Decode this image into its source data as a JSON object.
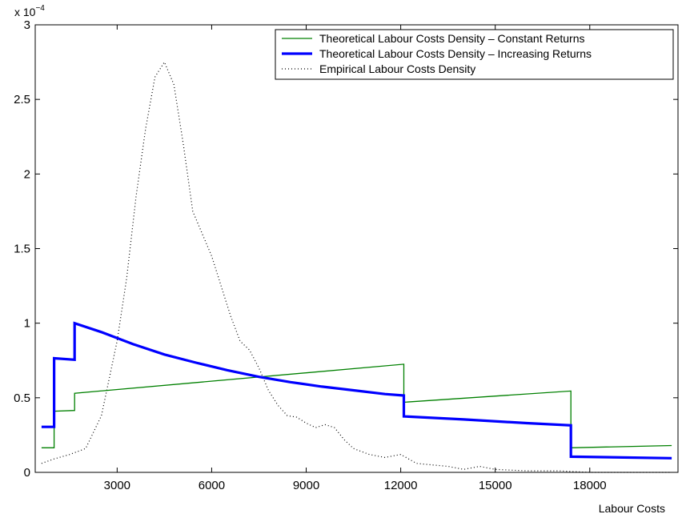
{
  "chart_data": {
    "type": "line",
    "title": "",
    "xlabel": "Labour Costs",
    "ylabel": "",
    "y_multiplier_label": "x 10",
    "y_multiplier_exponent": "−4",
    "xlim": [
      400,
      20800
    ],
    "ylim": [
      0,
      3
    ],
    "xticks": [
      3000,
      6000,
      9000,
      12000,
      15000,
      18000
    ],
    "xtick_labels": [
      "3000",
      "6000",
      "9000",
      "12000",
      "15000",
      "18000"
    ],
    "yticks": [
      0,
      0.5,
      1,
      1.5,
      2,
      2.5,
      3
    ],
    "ytick_labels": [
      "0",
      "0.5",
      "1",
      "1.5",
      "2",
      "2.5",
      "3"
    ],
    "grid": false,
    "legend_position": "top-right",
    "series": [
      {
        "name": "Theoretical Labour Costs Density – Constant Returns",
        "color": "#008000",
        "style": "solid",
        "x": [
          600,
          1000,
          1000,
          1650,
          1650,
          12100,
          12100,
          17400,
          17400,
          20600
        ],
        "y": [
          0.165,
          0.165,
          0.41,
          0.415,
          0.53,
          0.725,
          0.47,
          0.545,
          0.165,
          0.18
        ]
      },
      {
        "name": "Theoretical Labour Costs Density – Increasing Returns",
        "color": "#0000ff",
        "style": "thick",
        "x": [
          600,
          1000,
          1000,
          1650,
          1650,
          2500,
          3500,
          4500,
          5500,
          6500,
          7500,
          8500,
          9500,
          10500,
          11500,
          12100,
          12100,
          14000,
          16000,
          17400,
          17400,
          20600
        ],
        "y": [
          0.305,
          0.305,
          0.765,
          0.755,
          1.0,
          0.94,
          0.86,
          0.79,
          0.735,
          0.685,
          0.64,
          0.605,
          0.575,
          0.55,
          0.525,
          0.515,
          0.375,
          0.355,
          0.33,
          0.315,
          0.105,
          0.095
        ]
      },
      {
        "name": "Empirical Labour Costs Density",
        "color": "#000000",
        "style": "dotted",
        "x": [
          600,
          1000,
          1500,
          2000,
          2500,
          3000,
          3300,
          3600,
          3900,
          4200,
          4500,
          4800,
          5100,
          5400,
          5700,
          6000,
          6300,
          6600,
          6900,
          7200,
          7500,
          7800,
          8100,
          8400,
          8700,
          9000,
          9300,
          9600,
          9900,
          10200,
          10500,
          11000,
          11500,
          12000,
          12500,
          13000,
          13500,
          14000,
          14500,
          15000,
          16000,
          17000,
          18000,
          19000,
          20000,
          20600
        ],
        "y": [
          0.06,
          0.09,
          0.12,
          0.16,
          0.38,
          0.88,
          1.3,
          1.85,
          2.3,
          2.65,
          2.75,
          2.6,
          2.2,
          1.75,
          1.6,
          1.45,
          1.25,
          1.05,
          0.88,
          0.82,
          0.7,
          0.55,
          0.45,
          0.38,
          0.37,
          0.33,
          0.3,
          0.32,
          0.3,
          0.22,
          0.16,
          0.12,
          0.1,
          0.12,
          0.06,
          0.05,
          0.04,
          0.02,
          0.04,
          0.02,
          0.01,
          0.01,
          0.0,
          0.0,
          0.0,
          0.0
        ]
      }
    ]
  }
}
